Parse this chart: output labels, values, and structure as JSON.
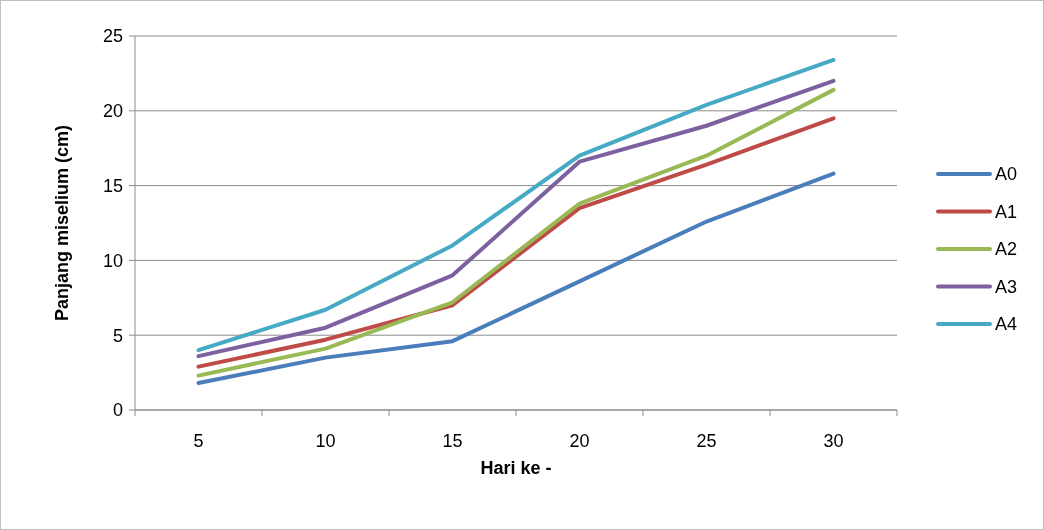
{
  "chart_data": {
    "type": "line",
    "xlabel": "Hari ke -",
    "ylabel": "Panjang miselium (cm)",
    "categories": [
      "5",
      "10",
      "15",
      "20",
      "25",
      "30"
    ],
    "ylim": [
      0,
      25
    ],
    "yticks": [
      0,
      5,
      10,
      15,
      20,
      25
    ],
    "grid": "y",
    "legend": "right",
    "marker": "none",
    "series": [
      {
        "name": "A0",
        "color": "#4a7ebb",
        "values": [
          1.8,
          3.5,
          4.6,
          8.6,
          12.6,
          15.8
        ]
      },
      {
        "name": "A1",
        "color": "#be4b48",
        "values": [
          2.9,
          4.7,
          7.0,
          13.5,
          16.4,
          19.5
        ]
      },
      {
        "name": "A2",
        "color": "#98b954",
        "values": [
          2.3,
          4.1,
          7.2,
          13.8,
          17.0,
          21.4
        ]
      },
      {
        "name": "A3",
        "color": "#7d60a0",
        "values": [
          3.6,
          5.5,
          9.0,
          16.6,
          19.0,
          22.0
        ]
      },
      {
        "name": "A4",
        "color": "#46aac5",
        "values": [
          4.0,
          6.7,
          11.0,
          17.0,
          20.4,
          23.4
        ]
      }
    ]
  }
}
